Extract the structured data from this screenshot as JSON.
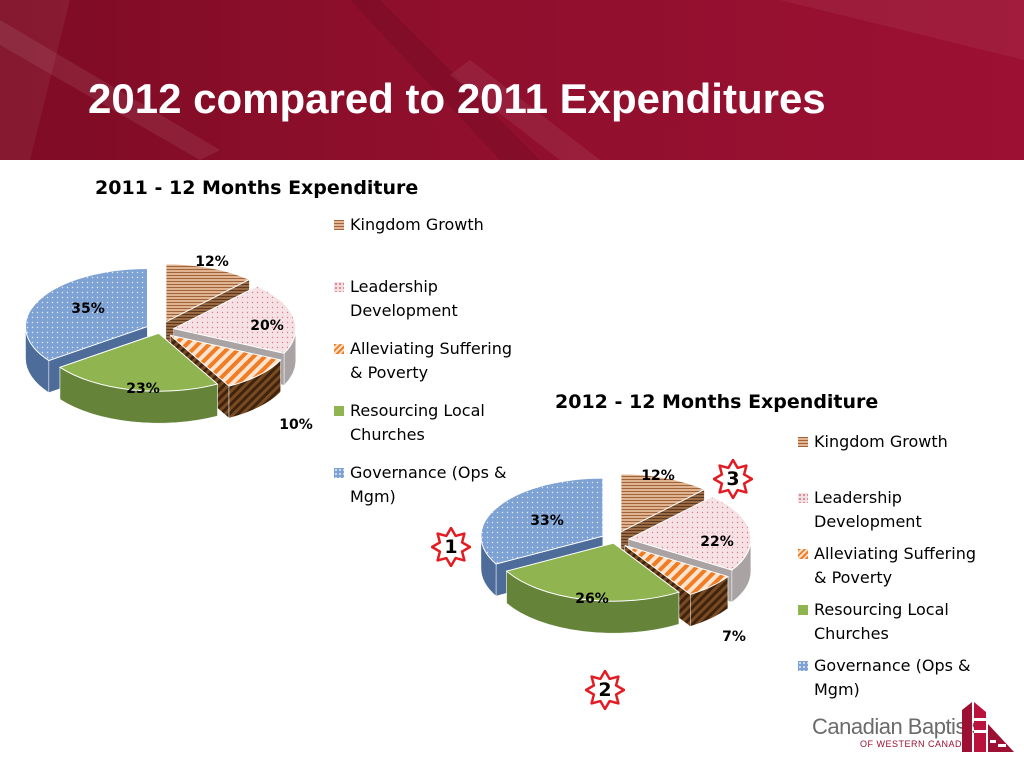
{
  "slide": {
    "title": "2012 compared to 2011 Expenditures"
  },
  "colors": {
    "header": "#8e0f2c",
    "kingdom_growth": "#d9a27c",
    "leadership_development": "#f4dfe2",
    "alleviating_suffering": "#f07c23",
    "resourcing_local_churches": "#8fb450",
    "governance": "#7ea2d4",
    "badge_outline": "#e31b23"
  },
  "chart_data": [
    {
      "type": "pie",
      "style": "3d-exploded",
      "title": "2011 - 12 Months Expenditure",
      "categories": [
        "Kingdom Growth",
        "Leadership Development",
        "Alleviating Suffering & Poverty",
        "Resourcing Local Churches",
        "Governance (Ops & Mgm)"
      ],
      "values": [
        12,
        20,
        10,
        23,
        35
      ],
      "labels": [
        "12%",
        "20%",
        "10%",
        "23%",
        "35%"
      ],
      "legend": [
        [
          "Kingdom Growth"
        ],
        [
          "Leadership",
          "Development"
        ],
        [
          "Alleviating Suffering",
          "& Poverty"
        ],
        [
          "Resourcing Local",
          "Churches"
        ],
        [
          "Governance (Ops &",
          "Mgm)"
        ]
      ],
      "legend_position": "right"
    },
    {
      "type": "pie",
      "style": "3d-exploded",
      "title": "2012 - 12 Months Expenditure",
      "categories": [
        "Kingdom Growth",
        "Leadership Development",
        "Alleviating Suffering & Poverty",
        "Resourcing Local Churches",
        "Governance (Ops & Mgm)"
      ],
      "values": [
        12,
        22,
        7,
        26,
        33
      ],
      "labels": [
        "12%",
        "22%",
        "7%",
        "26%",
        "33%"
      ],
      "legend": [
        [
          "Kingdom Growth"
        ],
        [
          "Leadership",
          "Development"
        ],
        [
          "Alleviating Suffering",
          "& Poverty"
        ],
        [
          "Resourcing Local",
          "Churches"
        ],
        [
          "Governance (Ops &",
          "Mgm)"
        ]
      ],
      "legend_position": "right"
    }
  ],
  "badges": [
    "1",
    "2",
    "3"
  ],
  "logo": {
    "name": "Canadian Baptists",
    "subtitle": "OF WESTERN CANADA"
  }
}
